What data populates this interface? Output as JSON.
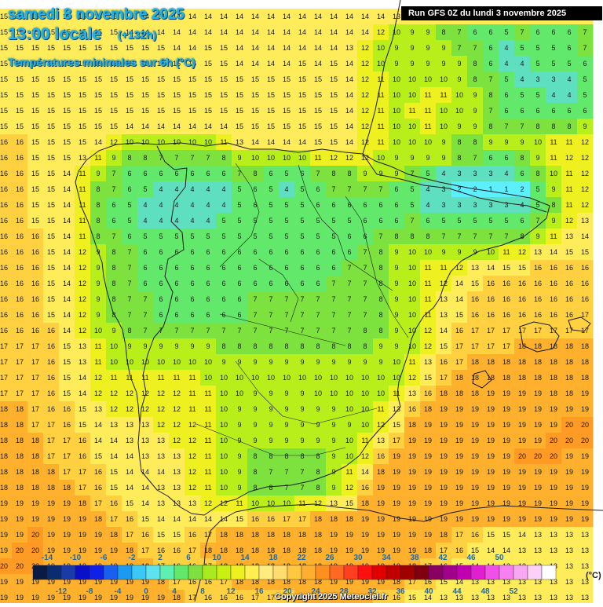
{
  "header": {
    "date": "samedi 8 novembre 2025",
    "local_time": "13:00 locale",
    "forecast_offset": "(+132h)",
    "field": "Températures minimales sur 6h (°C)",
    "run": "Run GFS 0Z du lundi 3 novembre 2025"
  },
  "legend": {
    "unit": "(°C)",
    "colors": [
      "#0a1a40",
      "#0b2c6e",
      "#1a3aa8",
      "#0a10c8",
      "#1020e8",
      "#1a60f0",
      "#1a9af0",
      "#3cc8f6",
      "#5ee2f0",
      "#5ef0b0",
      "#62e86a",
      "#7ee040",
      "#a8ec20",
      "#c8f010",
      "#eef020",
      "#fff050",
      "#ffec80",
      "#ffdc70",
      "#ffc840",
      "#ffae30",
      "#ff9020",
      "#ff6a20",
      "#ff4020",
      "#ff1010",
      "#e00000",
      "#c00000",
      "#a00000",
      "#800010",
      "#880060",
      "#a0008a",
      "#c000b0",
      "#e020d0",
      "#f050e8",
      "#f680f0",
      "#f8a8f0",
      "#fcd0f8",
      "#ffffff"
    ],
    "upper_labels": [
      "-14",
      "-10",
      "-6",
      "-2",
      "2",
      "6",
      "10",
      "14",
      "18",
      "22",
      "26",
      "30",
      "34",
      "38",
      "42",
      "46",
      "50"
    ],
    "lower_labels": [
      "-12",
      "-8",
      "-4",
      "0",
      "4",
      "8",
      "12",
      "16",
      "20",
      "24",
      "28",
      "32",
      "36",
      "40",
      "44",
      "48",
      "52"
    ]
  },
  "copyright": "Copyright 2025 Meteociel.fr",
  "map": {
    "palette": {
      "c2": "#5cf0ff",
      "c4": "#5ee0c0",
      "c6": "#62e86a",
      "c8": "#7ee23e",
      "c10": "#b8ee1a",
      "c12": "#eef020",
      "c14": "#ffec5a",
      "c16": "#ffd040",
      "c18": "#ffb02c",
      "c20": "#ff9a24"
    },
    "value_rows": [
      "15 15 15 15 15 15 15 15 14 14 14 14 14 14 14 14 14 14 14 14 14 14 14 14 14 13 13 13 13 14 14 14 14 14 13 13 14 14",
      "15 15 15 15 15 15 15 15 14 14 14 14 14 14 14 14 14 14 14 14 14 14 14 14 12 10 9 9 8 7 6 6 5 7 6 6 6 7",
      "15 15 15 15 15 15 15 15 15 15 15 14 14 15 15 14 14 14 14 14 14 14 13 12 10 9 9 9 9 7 7 6 4 5 5 5 6 7",
      "15 15 15 15 15 15 15 15 15 15 15 15 15 15 15 14 14 14 14 15 14 15 14 12 10 9 9 9 9 9 8 6 4 4 5 5 5 6",
      "15 15 15 15 15 15 15 15 15 15 15 15 15 15 15 15 15 15 15 15 15 15 14 12 11 10 10 10 10 9 8 7 5 4 3 3 4 5",
      "15 15 15 15 15 15 15 15 15 15 15 15 15 15 15 15 15 15 15 15 15 15 14 12 11 10 10 11 11 10 9 8 6 5 5 4 4 5",
      "15 15 15 15 15 15 15 15 15 15 15 15 15 15 15 15 15 15 15 15 15 15 14 12 11 10 11 11 10 10 9 7 6 6 6 6 6 6",
      "15 15 15 15 15 15 15 15 14 14 14 14 14 14 14 15 15 15 15 15 15 15 14 12 11 10 10 11 10 9 9 8 7 7 8 8 8 9",
      "16 16 15 15 15 15 14 12 10 10 10 10 10 10 11 13 14 14 14 14 15 15 14 12 11 10 10 10 9 8 8 9 9 9 10 11 11 12",
      "16 16 15 15 15 13 11 9 8 8 7 7 7 7 8 9 10 10 10 10 11 12 12 12 10 9 9 9 9 8 7 6 6 8 9 11 12 12",
      "16 16 15 15 14 11 9 7 6 6 6 6 6 6 6 7 8 6 5 6 7 8 8 9 9 9 7 5 4 3 3 3 4 6 8 10 11 12",
      "16 16 15 15 14 11 8 7 6 5 4 4 4 4 4 5 6 5 4 5 6 7 7 7 7 6 5 4 3 2 2 1 1 2 5 9 11 12",
      "16 16 15 15 14 11 8 6 5 4 4 4 4 4 4 5 6 5 5 5 6 6 6 6 6 6 5 4 3 3 3 3 3 4 5 8 11 12",
      "16 16 15 15 14 11 8 6 5 4 4 4 4 4 5 5 5 5 5 5 5 5 5 6 6 6 7 6 5 5 5 5 5 6 7 9 12 13",
      "16 16 16 15 14 11 8 7 6 5 5 5 5 5 5 5 5 5 5 5 5 5 6 6 7 8 8 8 7 7 7 7 7 8 9 11 13 14",
      "16 16 16 15 14 12 9 8 7 6 6 6 6 6 6 6 6 6 6 6 6 6 6 7 8 9 10 10 9 9 9 10 11 12 13 14 15 15",
      "16 16 16 15 14 12 9 8 7 6 6 6 6 6 6 6 6 6 6 6 6 6 7 7 8 9 10 11 11 12 13 14 15 15 16 16 16 16",
      "16 16 16 15 14 12 9 8 7 6 6 6 6 6 6 6 6 6 6 6 6 7 7 7 8 9 10 11 12 14 15 16 16 16 16 16 16 16",
      "16 16 16 15 14 12 9 8 7 7 6 6 6 6 6 6 7 7 7 7 7 7 7 7 8 9 10 11 13 14 16 16 16 16 16 16 16 16",
      "16 16 16 15 14 12 9 8 7 7 6 6 6 6 6 6 7 7 7 7 7 7 7 7 8 9 10 11 13 15 16 16 16 16 16 16 16 17",
      "16 16 16 16 14 12 10 9 8 7 7 7 7 7 7 7 7 7 7 7 7 7 7 8 8 9 10 12 14 16 17 17 17 17 17 17 17 17",
      "17 17 17 16 15 13 11 10 9 9 9 9 9 9 8 8 8 8 8 8 8 8 8 8 9 9 10 12 15 17 17 17 17 18 18 18 18 18",
      "17 17 17 16 15 13 11 10 10 10 10 10 10 10 9 9 9 9 9 9 9 9 9 9 9 10 11 13 16 17 18 18 18 18 18 18 18 18",
      "17 17 17 16 15 14 12 11 11 11 11 11 11 10 10 10 10 10 10 10 10 10 10 10 10 10 12 15 17 18 18 18 18 18 18 18 18 18",
      "17 17 17 16 15 14 12 12 12 12 12 12 11 11 10 10 9 9 9 9 10 10 10 10 10 11 13 16 18 18 18 19 19 19 19 18 18 19",
      "18 18 17 16 16 15 13 12 12 12 12 12 11 11 10 9 9 9 9 9 9 9 10 10 11 13 16 18 19 19 19 19 19 19 19 19 19 19",
      "18 18 17 17 16 15 14 13 13 13 12 12 12 11 10 9 9 9 9 9 9 9 9 10 12 15 18 19 19 19 19 19 19 19 19 19 20 20",
      "18 18 18 17 17 16 14 14 13 13 13 12 12 11 10 9 9 9 9 9 9 9 10 11 13 17 19 19 19 19 19 19 19 19 19 20 20 20",
      "18 18 18 17 17 16 15 14 14 13 13 13 12 11 10 9 8 8 8 8 8 9 10 12 16 19 19 19 19 19 19 19 19 20 20 20 19 19",
      "18 18 18 18 17 17 16 15 14 14 14 13 12 11 10 9 8 7 7 7 8 9 11 14 18 19 19 19 19 19 19 19 19 19 19 19 19 19",
      "18 18 18 18 18 17 16 15 14 14 13 13 12 11 10 9 8 8 7 7 8 9 12 16 19 19 19 19 19 19 19 19 19 19 19 19 19 19",
      "19 19 19 19 19 18 17 16 15 14 13 13 13 12 12 11 10 10 10 11 12 13 15 18 19 19 19 19 19 19 19 19 19 19 19 19 19 19",
      "19 19 19 19 19 19 18 17 16 15 14 14 14 14 14 15 16 16 17 17 18 18 18 19 19 19 19 19 19 19 19 19 19 19 19 19 19 19",
      "19 19 20 19 19 19 19 18 17 16 15 15 16 17 18 18 18 18 18 18 18 19 19 19 19 19 19 19 18 17 16 15 15 14 13 13 13 13",
      "19 20 20 19 19 19 19 19 18 17 16 16 17 18 18 18 18 18 18 18 18 19 19 19 19 19 19 18 17 16 15 14 14 13 13 13 13 13",
      "20 20 20 19 19 19 19 19 19 18 17 16 16 17 18 18 18 18 18 18 18 19 19 19 19 19 18 17 16 15 14 14 13 13 13 13 13 13",
      "19 19 19 19 19 19 19 19 19 19 18 17 16 16 17 18 18 18 18 18 18 19 19 19 19 18 17 16 15 14 13 13 13 13 13 13 13 13",
      "19 19 19 19 19 19 19 19 19 19 19 18 17 16 16 16 17 17 17 18 18 18 19 18 17 16 15 14 13 13 13 13 13 13 13 13 13 13"
    ]
  }
}
